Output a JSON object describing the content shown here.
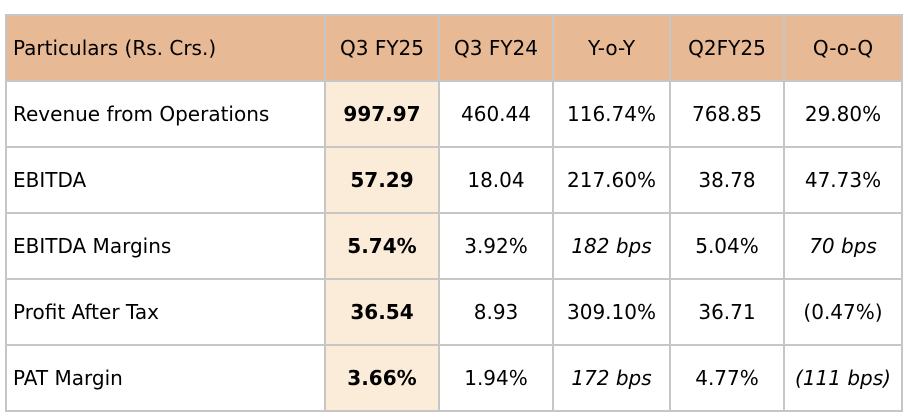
{
  "table": {
    "headers": [
      "Particulars (Rs. Crs.)",
      "Q3 FY25",
      "Q3 FY24",
      "Y-o-Y",
      "Q2FY25",
      "Q-o-Q"
    ],
    "rows": [
      {
        "label": "Revenue from Operations",
        "q3fy25": "997.97",
        "q3fy24": "460.44",
        "yoy": "116.74%",
        "q2fy25": "768.85",
        "qoq": "29.80%"
      },
      {
        "label": "EBITDA",
        "q3fy25": "57.29",
        "q3fy24": "18.04",
        "yoy": "217.60%",
        "q2fy25": "38.78",
        "qoq": "47.73%"
      },
      {
        "label": "EBITDA Margins",
        "q3fy25": "5.74%",
        "q3fy24": "3.92%",
        "yoy": "182 bps",
        "q2fy25": "5.04%",
        "qoq": "70 bps"
      },
      {
        "label": "Profit After Tax",
        "q3fy25": "36.54",
        "q3fy24": "8.93",
        "yoy": "309.10%",
        "q2fy25": "36.71",
        "qoq": "(0.47%)"
      },
      {
        "label": "PAT Margin",
        "q3fy25": "3.66%",
        "q3fy24": "1.94%",
        "yoy": "172 bps",
        "q2fy25": "4.77%",
        "qoq": "(111 bps)"
      }
    ]
  },
  "colors": {
    "header_bg": "#e8b995",
    "highlight_column_bg": "#fbecd9",
    "grid_line": "#c6c6c6"
  }
}
